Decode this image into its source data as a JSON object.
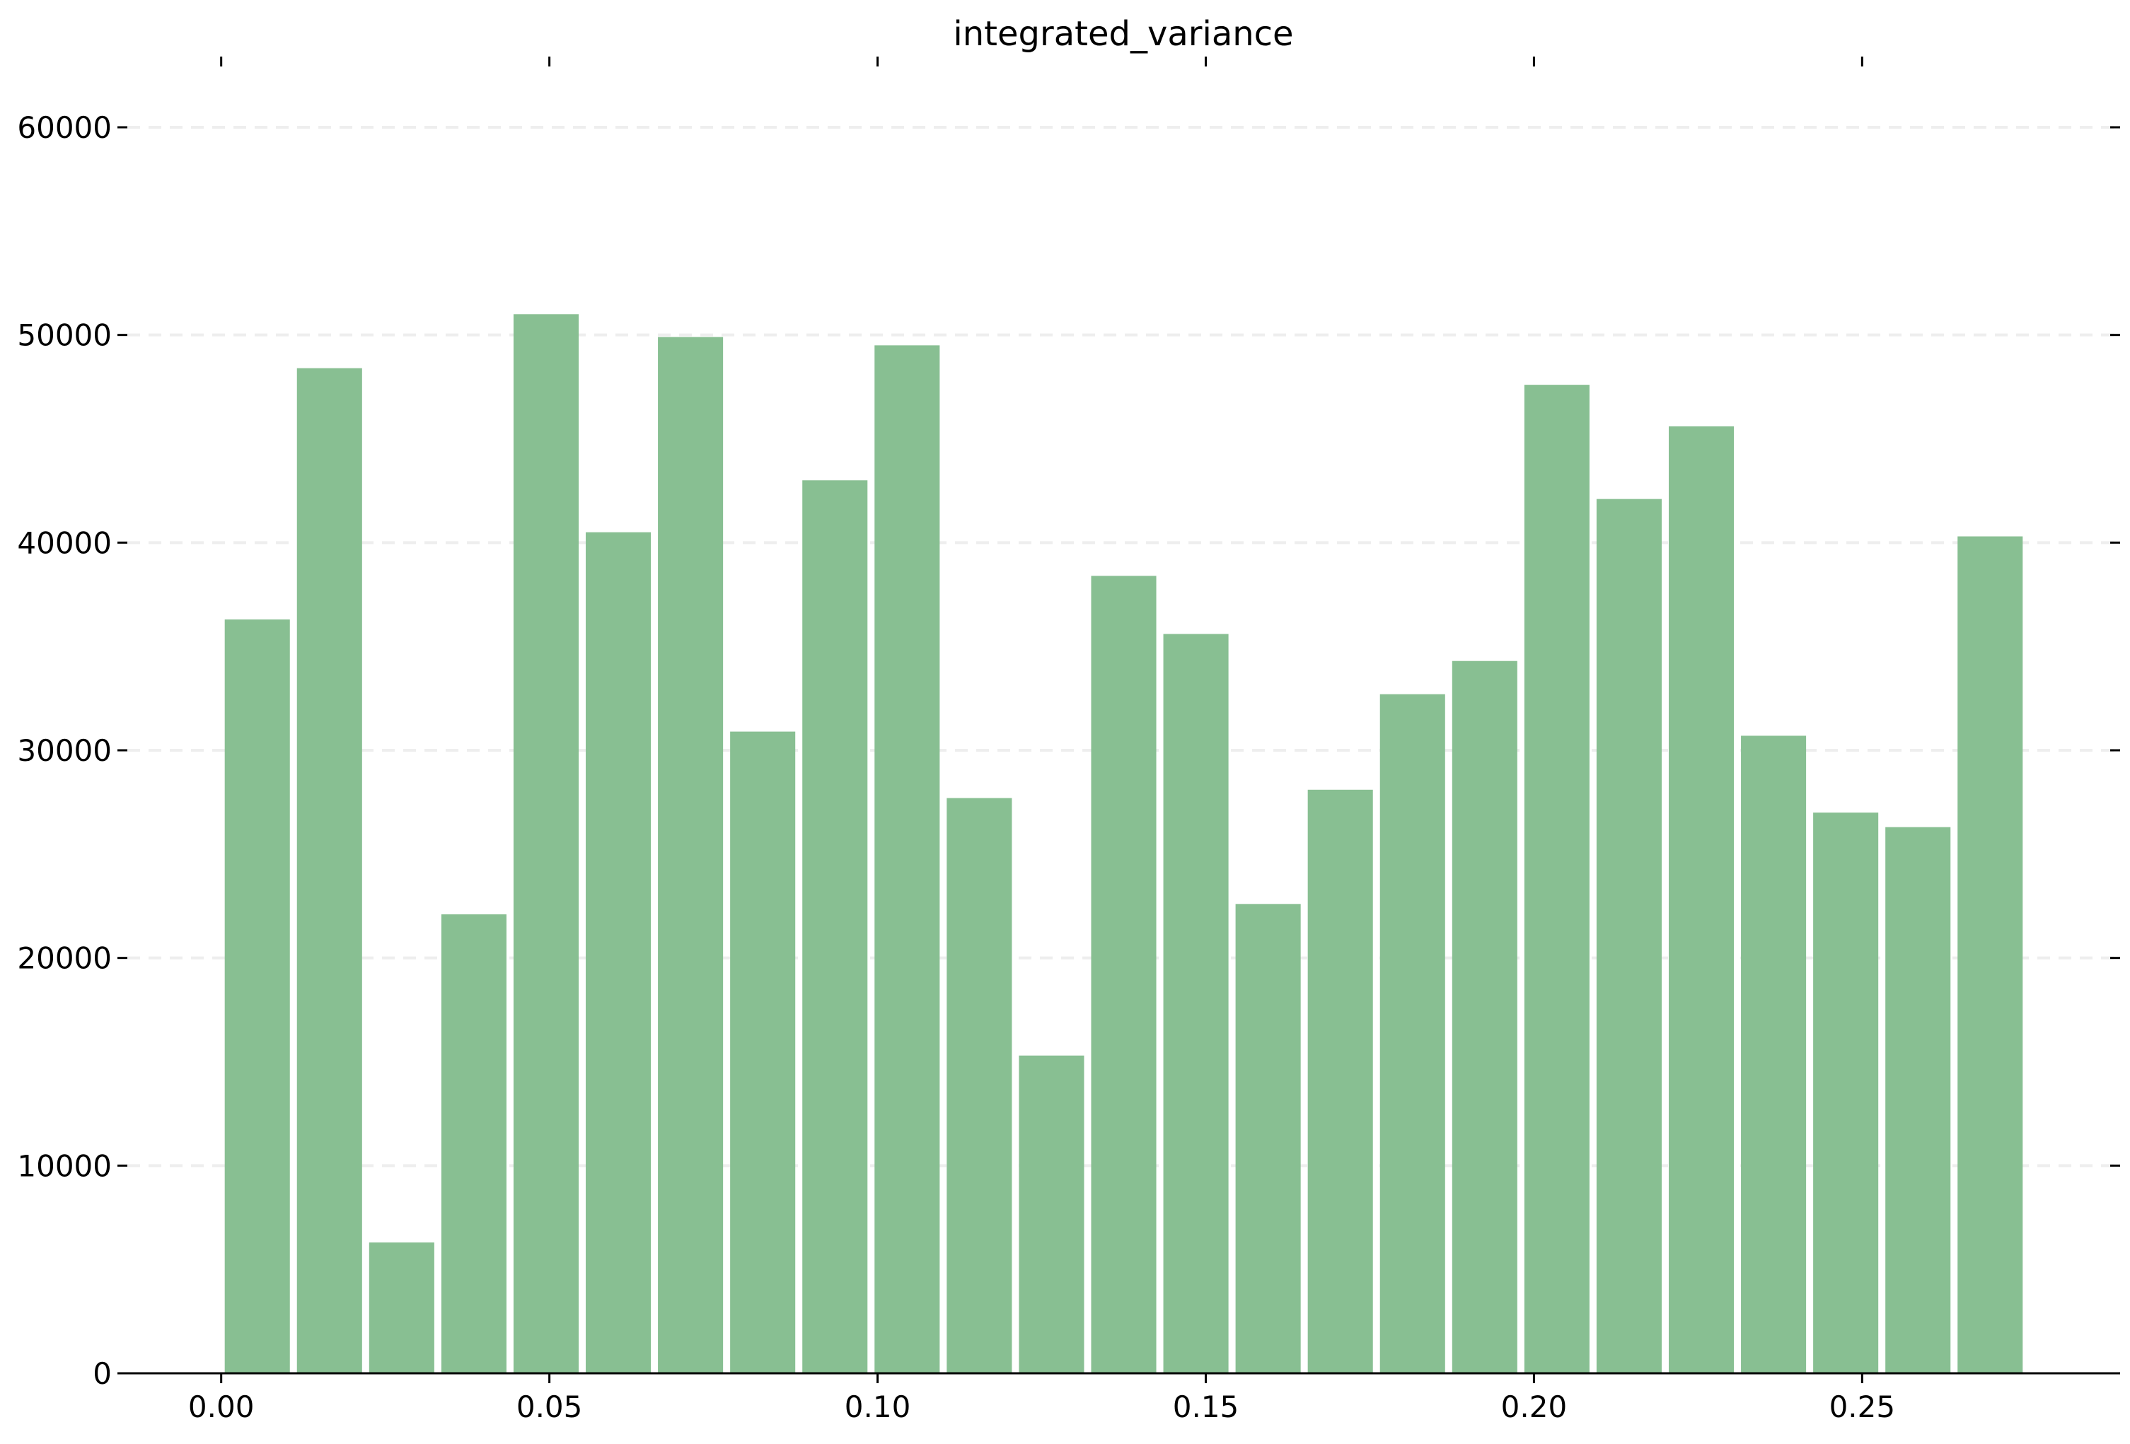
{
  "chart_data": {
    "type": "bar",
    "title": "integrated_variance",
    "xlabel": "",
    "ylabel": "",
    "bar_color": "#88bf92",
    "grid": true,
    "xlim": [
      -0.0143,
      0.2893
    ],
    "ylim": [
      0,
      60000
    ],
    "x_ticks": [
      "0.00",
      "0.05",
      "0.10",
      "0.15",
      "0.20",
      "0.25"
    ],
    "y_ticks": [
      "0",
      "10000",
      "20000",
      "30000",
      "40000",
      "50000",
      "60000"
    ],
    "bin_width": 0.011,
    "bins": [
      {
        "x": 0.0055,
        "value": 36300
      },
      {
        "x": 0.0165,
        "value": 48400
      },
      {
        "x": 0.0275,
        "value": 6300
      },
      {
        "x": 0.0385,
        "value": 22100
      },
      {
        "x": 0.0495,
        "value": 51000
      },
      {
        "x": 0.0605,
        "value": 40500
      },
      {
        "x": 0.0715,
        "value": 49900
      },
      {
        "x": 0.0825,
        "value": 30900
      },
      {
        "x": 0.0935,
        "value": 43000
      },
      {
        "x": 0.1045,
        "value": 49500
      },
      {
        "x": 0.1155,
        "value": 27700
      },
      {
        "x": 0.1265,
        "value": 15300
      },
      {
        "x": 0.1375,
        "value": 38400
      },
      {
        "x": 0.1485,
        "value": 35600
      },
      {
        "x": 0.1595,
        "value": 22600
      },
      {
        "x": 0.1705,
        "value": 28100
      },
      {
        "x": 0.1815,
        "value": 32700
      },
      {
        "x": 0.1925,
        "value": 34300
      },
      {
        "x": 0.2035,
        "value": 47600
      },
      {
        "x": 0.2145,
        "value": 42100
      },
      {
        "x": 0.2255,
        "value": 45600
      },
      {
        "x": 0.2365,
        "value": 30700
      },
      {
        "x": 0.2475,
        "value": 27000
      },
      {
        "x": 0.2585,
        "value": 26300
      },
      {
        "x": 0.2695,
        "value": 40300
      }
    ]
  }
}
